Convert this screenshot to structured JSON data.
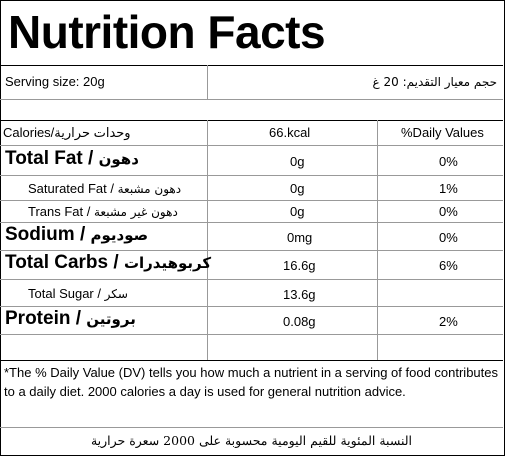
{
  "title": "Nutrition Facts",
  "serving": {
    "left": "Serving size: 20g",
    "right": "حجم معيار التقديم: 20 غ"
  },
  "header": {
    "label": "Calories/وحدات حرارية",
    "amount": "66.kcal",
    "dv": "%Daily Values"
  },
  "rows": [
    {
      "label": "Total Fat / ",
      "label_ar": "دهون",
      "amount": "0g",
      "dv": "0%"
    },
    {
      "label": "Saturated Fat / ",
      "label_ar": "دهون مشبعة",
      "amount": "0g",
      "dv": "1%"
    },
    {
      "label": "Trans Fat / ",
      "label_ar": "دهون غير مشبعة",
      "amount": "0g",
      "dv": "0%"
    },
    {
      "label": "Sodium / ",
      "label_ar": "صوديوم",
      "amount": "0mg",
      "dv": "0%"
    },
    {
      "label": "Total Carbs / ",
      "label_ar": "كربوهيدرات",
      "amount": "16.6g",
      "dv": "6%"
    },
    {
      "label": "Total Sugar / ",
      "label_ar": "سكر",
      "amount": "13.6g",
      "dv": ""
    },
    {
      "label": "Protein / ",
      "label_ar": "بروتين",
      "amount": "0.08g",
      "dv": "2%"
    }
  ],
  "footnote": "*The % Daily Value (DV) tells you how much a nutrient in a serving of food contributes to a daily diet. 2000 calories a day is used for general nutrition advice.",
  "footnote_ar": "النسبة المئوية للقيم اليومية محسوبة على 2000 سعرة حرارية"
}
